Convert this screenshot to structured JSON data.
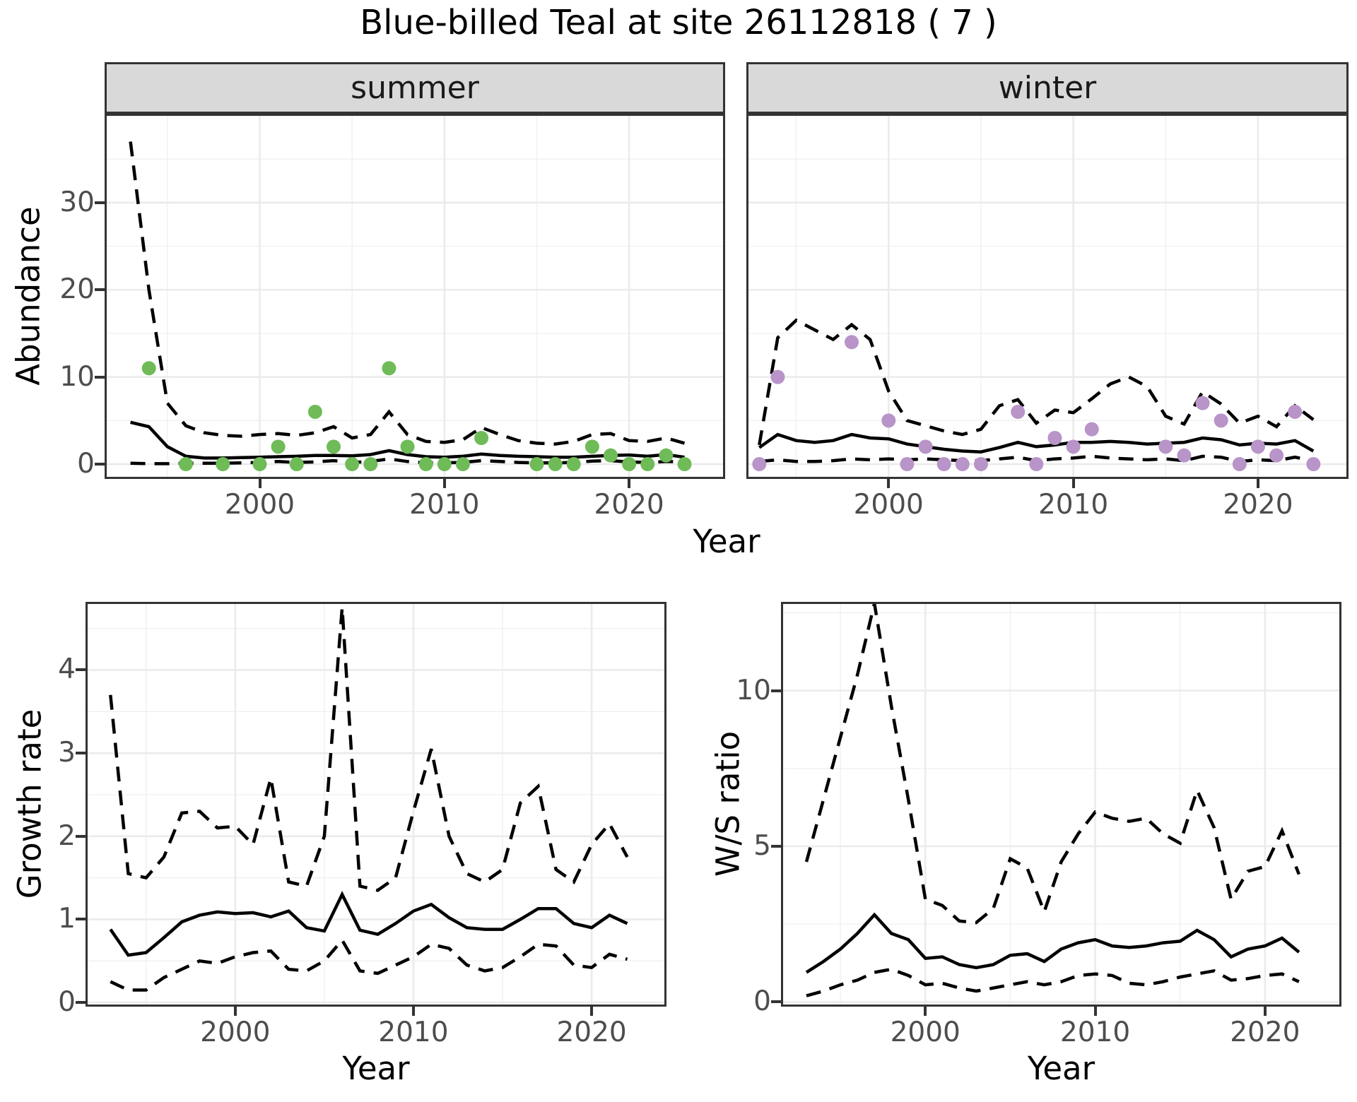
{
  "title": "Blue-billed Teal at site 26112818 ( 7 )",
  "top_row": {
    "xlabel": "Year"
  },
  "colors": {
    "summer_point": "#6EBB58",
    "winter_point": "#B894C9",
    "line": "#000000",
    "grid_major": "#EBEBEB",
    "grid_minor": "#F0F0F0",
    "panel_border": "#333333",
    "tick_mark": "#333333",
    "tick_text": "#4D4D4D",
    "strip_bg": "#D9D9D9"
  },
  "chart_data": [
    {
      "type": "line",
      "facet": "summer",
      "ylabel": "Abundance",
      "xlabel": "Year",
      "xlim": [
        1991.6,
        2025.2
      ],
      "ylim": [
        -1.7,
        40.2
      ],
      "xticks": [
        2000,
        2010,
        2020
      ],
      "xminor": [
        1995,
        2005,
        2015
      ],
      "yticks": [
        0,
        10,
        20,
        30
      ],
      "yminor": [
        5,
        15,
        25,
        35
      ],
      "show_ytick_labels": true,
      "legend": "none",
      "series": [
        {
          "name": "ci-upper",
          "style": "dashed",
          "x_start": 1993,
          "x_step": 1,
          "y": [
            37,
            20,
            7,
            4.4,
            3.6,
            3.3,
            3.2,
            3.4,
            3.5,
            3.3,
            3.6,
            4.3,
            3.0,
            3.4,
            6.0,
            3.4,
            2.6,
            2.5,
            2.8,
            4.2,
            3.4,
            2.7,
            2.4,
            2.3,
            2.6,
            3.4,
            3.5,
            2.7,
            2.6,
            3.0,
            2.4
          ]
        },
        {
          "name": "ci-lower",
          "style": "dashed",
          "x_start": 1993,
          "x_step": 1,
          "y": [
            0.1,
            0.05,
            0.05,
            0.1,
            0.1,
            0.1,
            0.15,
            0.2,
            0.3,
            0.2,
            0.25,
            0.4,
            0.2,
            0.3,
            0.6,
            0.3,
            0.15,
            0.15,
            0.2,
            0.4,
            0.3,
            0.2,
            0.15,
            0.15,
            0.2,
            0.35,
            0.4,
            0.25,
            0.2,
            0.3,
            0.25
          ]
        },
        {
          "name": "mean",
          "style": "solid",
          "x_start": 1993,
          "x_step": 1,
          "y": [
            4.8,
            4.3,
            2.0,
            0.9,
            0.7,
            0.7,
            0.75,
            0.8,
            0.85,
            0.9,
            1.0,
            1.0,
            0.95,
            1.1,
            1.55,
            1.1,
            0.85,
            0.8,
            0.9,
            1.15,
            1.0,
            0.9,
            0.85,
            0.8,
            0.8,
            0.9,
            1.0,
            1.05,
            0.9,
            1.1,
            0.8
          ]
        },
        {
          "name": "observed",
          "style": "points",
          "color": "#6EBB58",
          "x": [
            1994,
            1996,
            1998,
            2000,
            2001,
            2002,
            2003,
            2004,
            2005,
            2006,
            2007,
            2008,
            2009,
            2010,
            2011,
            2012,
            2015,
            2016,
            2017,
            2018,
            2019,
            2020,
            2021,
            2022,
            2023
          ],
          "y": [
            11,
            0,
            0,
            0,
            2,
            0,
            6,
            2,
            0,
            0,
            11,
            2,
            0,
            0,
            0,
            3,
            0,
            0,
            0,
            2,
            1,
            0,
            0,
            1,
            0
          ]
        }
      ]
    },
    {
      "type": "line",
      "facet": "winter",
      "ylabel": null,
      "xlabel": "Year",
      "xlim": [
        1992.3,
        2024.9
      ],
      "ylim": [
        -1.7,
        40.2
      ],
      "xticks": [
        2000,
        2010,
        2020
      ],
      "xminor": [
        1995,
        2005,
        2015
      ],
      "yticks": [
        0,
        10,
        20,
        30
      ],
      "yminor": [
        5,
        15,
        25,
        35
      ],
      "show_ytick_labels": false,
      "legend": "none",
      "series": [
        {
          "name": "ci-upper",
          "style": "dashed",
          "x_start": 1993,
          "x_step": 1,
          "y": [
            2.2,
            14.5,
            16.5,
            15.4,
            14.3,
            16.0,
            14.3,
            8.4,
            5.0,
            4.4,
            3.8,
            3.4,
            4.0,
            6.7,
            7.4,
            4.7,
            6.2,
            5.9,
            7.5,
            9.2,
            10.0,
            8.9,
            5.5,
            4.6,
            8.3,
            6.9,
            4.7,
            5.5,
            4.3,
            6.7,
            5.1
          ]
        },
        {
          "name": "ci-lower",
          "style": "dashed",
          "x_start": 1993,
          "x_step": 1,
          "y": [
            0.3,
            0.5,
            0.3,
            0.3,
            0.4,
            0.6,
            0.5,
            0.6,
            0.5,
            0.6,
            0.5,
            0.4,
            0.4,
            0.6,
            0.8,
            0.4,
            0.6,
            0.7,
            0.9,
            0.7,
            0.6,
            0.5,
            0.6,
            0.4,
            0.9,
            0.8,
            0.3,
            0.5,
            0.4,
            0.8,
            0.4
          ]
        },
        {
          "name": "mean",
          "style": "solid",
          "x_start": 1993,
          "x_step": 1,
          "y": [
            1.9,
            3.4,
            2.7,
            2.5,
            2.7,
            3.4,
            3.0,
            2.9,
            2.3,
            2.0,
            1.7,
            1.5,
            1.4,
            1.9,
            2.5,
            2.0,
            2.2,
            2.5,
            2.5,
            2.6,
            2.5,
            2.3,
            2.4,
            2.5,
            3.0,
            2.8,
            2.2,
            2.4,
            2.3,
            2.7,
            1.5
          ]
        },
        {
          "name": "observed",
          "style": "points",
          "color": "#B894C9",
          "x": [
            1993,
            1994,
            1998,
            2000,
            2001,
            2002,
            2003,
            2004,
            2005,
            2007,
            2008,
            2009,
            2010,
            2011,
            2015,
            2016,
            2017,
            2018,
            2019,
            2020,
            2021,
            2022,
            2023
          ],
          "y": [
            0,
            10,
            14,
            5,
            0,
            2,
            0,
            0,
            0,
            6,
            0,
            3,
            2,
            4,
            2,
            1,
            7,
            5,
            0,
            2,
            1,
            6,
            0
          ]
        }
      ]
    },
    {
      "type": "line",
      "facet": null,
      "ylabel": "Growth rate",
      "xlabel": "Year",
      "xlim": [
        1991.6,
        2024.2
      ],
      "ylim": [
        -0.05,
        4.82
      ],
      "xticks": [
        2000,
        2010,
        2020
      ],
      "xminor": [
        1995,
        2005,
        2015
      ],
      "yticks": [
        0,
        1,
        2,
        3,
        4
      ],
      "yminor": [
        0.5,
        1.5,
        2.5,
        3.5,
        4.5
      ],
      "show_ytick_labels": true,
      "legend": "none",
      "series": [
        {
          "name": "ci-upper",
          "style": "dashed",
          "x_start": 1993,
          "x_step": 1,
          "y": [
            3.7,
            1.55,
            1.5,
            1.75,
            2.28,
            2.3,
            2.1,
            2.12,
            1.9,
            2.7,
            1.45,
            1.4,
            2.0,
            4.75,
            1.4,
            1.35,
            1.5,
            2.3,
            3.05,
            2.0,
            1.55,
            1.45,
            1.6,
            2.4,
            2.6,
            1.6,
            1.45,
            1.9,
            2.15,
            1.75
          ]
        },
        {
          "name": "ci-lower",
          "style": "dashed",
          "x_start": 1993,
          "x_step": 1,
          "y": [
            0.25,
            0.15,
            0.15,
            0.3,
            0.4,
            0.5,
            0.47,
            0.55,
            0.6,
            0.62,
            0.4,
            0.38,
            0.5,
            0.75,
            0.38,
            0.35,
            0.45,
            0.55,
            0.7,
            0.65,
            0.45,
            0.38,
            0.42,
            0.55,
            0.7,
            0.68,
            0.45,
            0.42,
            0.58,
            0.52
          ]
        },
        {
          "name": "mean",
          "style": "solid",
          "x_start": 1993,
          "x_step": 1,
          "y": [
            0.88,
            0.57,
            0.6,
            0.78,
            0.97,
            1.05,
            1.09,
            1.07,
            1.08,
            1.03,
            1.1,
            0.9,
            0.86,
            1.3,
            0.87,
            0.82,
            0.95,
            1.1,
            1.18,
            1.02,
            0.9,
            0.88,
            0.88,
            1.0,
            1.13,
            1.13,
            0.95,
            0.9,
            1.05,
            0.95
          ]
        }
      ]
    },
    {
      "type": "line",
      "facet": null,
      "ylabel": "W/S ratio",
      "xlabel": "Year",
      "xlim": [
        1991.5,
        2024.5
      ],
      "ylim": [
        -0.15,
        12.85
      ],
      "xticks": [
        2000,
        2010,
        2020
      ],
      "xminor": [
        1995,
        2005,
        2015
      ],
      "yticks": [
        0,
        5,
        10
      ],
      "yminor": [
        2.5,
        7.5,
        12.5
      ],
      "show_ytick_labels": true,
      "legend": "none",
      "series": [
        {
          "name": "ci-upper",
          "style": "dashed",
          "x_start": 1993,
          "x_step": 1,
          "y": [
            4.5,
            6.5,
            8.5,
            10.5,
            12.8,
            9.5,
            6.5,
            3.3,
            3.1,
            2.6,
            2.55,
            3.0,
            4.6,
            4.3,
            2.9,
            4.5,
            5.4,
            6.1,
            5.9,
            5.8,
            5.9,
            5.4,
            5.1,
            6.8,
            5.6,
            3.3,
            4.2,
            4.35,
            5.5,
            4.1
          ]
        },
        {
          "name": "ci-lower",
          "style": "dashed",
          "x_start": 1993,
          "x_step": 1,
          "y": [
            0.2,
            0.35,
            0.55,
            0.7,
            0.95,
            1.05,
            0.85,
            0.55,
            0.6,
            0.45,
            0.35,
            0.45,
            0.55,
            0.65,
            0.55,
            0.65,
            0.85,
            0.9,
            0.85,
            0.6,
            0.55,
            0.65,
            0.8,
            0.9,
            1.0,
            0.7,
            0.75,
            0.85,
            0.9,
            0.65
          ]
        },
        {
          "name": "mean",
          "style": "solid",
          "x_start": 1993,
          "x_step": 1,
          "y": [
            0.95,
            1.3,
            1.7,
            2.2,
            2.8,
            2.2,
            2.0,
            1.4,
            1.45,
            1.2,
            1.1,
            1.2,
            1.5,
            1.55,
            1.3,
            1.7,
            1.9,
            2.0,
            1.8,
            1.75,
            1.8,
            1.9,
            1.95,
            2.3,
            2.0,
            1.45,
            1.7,
            1.8,
            2.05,
            1.6
          ]
        }
      ]
    }
  ]
}
